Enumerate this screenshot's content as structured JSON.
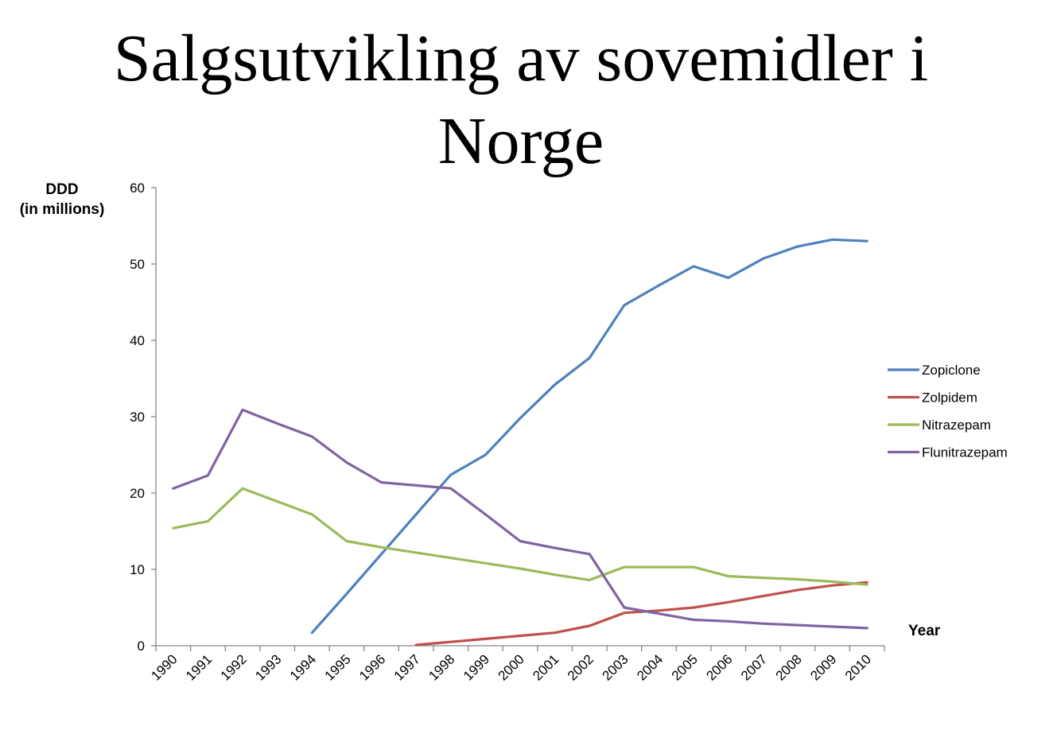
{
  "title_line1": "Salgsutvikling av sovemidler i",
  "title_line2": "Norge",
  "chart_data": {
    "type": "line",
    "title": "Salgsutvikling av sovemidler i Norge",
    "ylabel_line1": "DDD",
    "ylabel_line2": "(in millions)",
    "xlabel": "Year",
    "ylim": [
      0,
      60
    ],
    "yticks": [
      0,
      10,
      20,
      30,
      40,
      50,
      60
    ],
    "grid": false,
    "legend_position": "right",
    "categories": [
      "1990",
      "1991",
      "1992",
      "1993",
      "1994",
      "1995",
      "1996",
      "1997",
      "1998",
      "1999",
      "2000",
      "2001",
      "2002",
      "2003",
      "2004",
      "2005",
      "2006",
      "2007",
      "2008",
      "2009",
      "2010"
    ],
    "series": [
      {
        "name": "Zopiclone",
        "color": "#4f81bd",
        "values": [
          null,
          null,
          null,
          null,
          1.7,
          6.8,
          12.0,
          17.2,
          22.4,
          25.0,
          29.8,
          34.2,
          37.7,
          44.6,
          47.2,
          49.7,
          48.2,
          50.7,
          52.3,
          53.2,
          53.0
        ]
      },
      {
        "name": "Zolpidem",
        "color": "#c0504d",
        "values": [
          null,
          null,
          null,
          null,
          null,
          null,
          null,
          0.1,
          0.5,
          0.9,
          1.3,
          1.7,
          2.6,
          4.3,
          4.6,
          5.0,
          5.7,
          6.5,
          7.3,
          7.9,
          8.3
        ]
      },
      {
        "name": "Nitrazepam",
        "color": "#9bbb59",
        "values": [
          15.4,
          16.3,
          20.6,
          18.9,
          17.2,
          13.7,
          12.9,
          12.2,
          11.5,
          10.8,
          10.1,
          9.3,
          8.6,
          10.3,
          10.3,
          10.3,
          9.1,
          8.9,
          8.7,
          8.4,
          8.0
        ]
      },
      {
        "name": "Flunitrazepam",
        "color": "#8064a2",
        "values": [
          20.6,
          22.3,
          30.9,
          29.1,
          27.4,
          24.0,
          21.4,
          21.0,
          20.6,
          17.2,
          13.7,
          12.8,
          12.0,
          5.0,
          4.2,
          3.4,
          3.2,
          2.9,
          2.7,
          2.5,
          2.3
        ]
      }
    ]
  }
}
